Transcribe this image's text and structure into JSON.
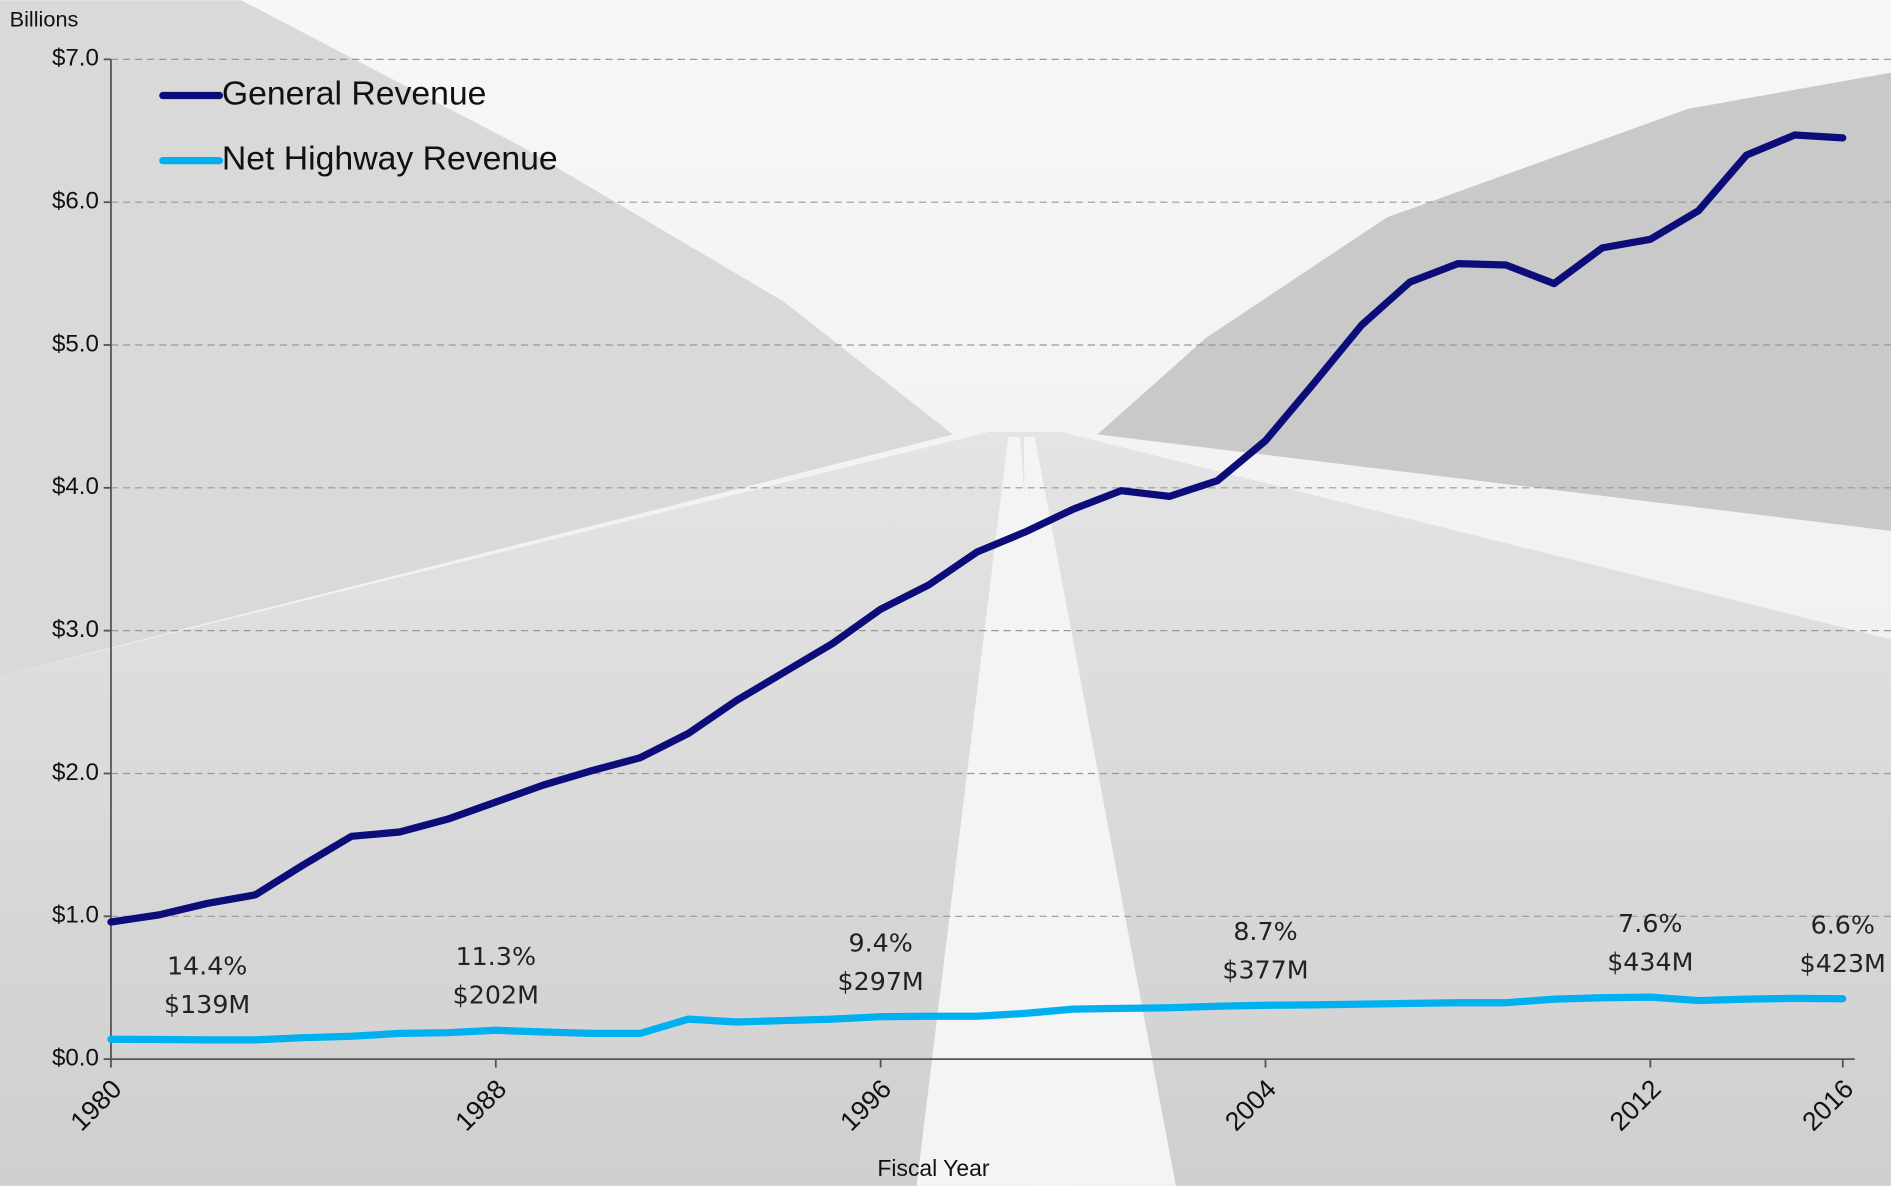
{
  "chart_data": {
    "type": "line",
    "y_axis_label": "Billions",
    "x_axis_label": "Fiscal Year",
    "x": [
      1980,
      1981,
      1982,
      1983,
      1984,
      1985,
      1986,
      1987,
      1988,
      1989,
      1990,
      1991,
      1992,
      1993,
      1994,
      1995,
      1996,
      1997,
      1998,
      1999,
      2000,
      2001,
      2002,
      2003,
      2004,
      2005,
      2006,
      2007,
      2008,
      2009,
      2010,
      2011,
      2012,
      2013,
      2014,
      2015,
      2016
    ],
    "series": [
      {
        "name": "General Revenue",
        "color": "#0d0d7a",
        "values": [
          0.96,
          1.01,
          1.09,
          1.15,
          1.36,
          1.56,
          1.59,
          1.68,
          1.8,
          1.92,
          2.02,
          2.11,
          2.28,
          2.51,
          2.71,
          2.91,
          3.15,
          3.32,
          3.55,
          3.69,
          3.85,
          3.98,
          3.94,
          4.05,
          4.33,
          4.73,
          5.14,
          5.44,
          5.57,
          5.56,
          5.43,
          5.68,
          5.74,
          5.94,
          6.33,
          6.47,
          6.45
        ]
      },
      {
        "name": "Net Highway Revenue",
        "color": "#00b0f0",
        "values": [
          0.139,
          0.137,
          0.135,
          0.135,
          0.15,
          0.16,
          0.18,
          0.185,
          0.202,
          0.19,
          0.18,
          0.18,
          0.28,
          0.26,
          0.27,
          0.28,
          0.297,
          0.3,
          0.3,
          0.32,
          0.35,
          0.355,
          0.36,
          0.37,
          0.377,
          0.38,
          0.385,
          0.39,
          0.395,
          0.395,
          0.42,
          0.43,
          0.434,
          0.41,
          0.42,
          0.425,
          0.423
        ]
      }
    ],
    "xlim": [
      1980,
      2016
    ],
    "xticks": [
      1980,
      1988,
      1996,
      2004,
      2012,
      2016
    ],
    "ylim": [
      0,
      7
    ],
    "yticks": [
      {
        "value": 0,
        "label": "$0.0"
      },
      {
        "value": 1,
        "label": "$1.0"
      },
      {
        "value": 2,
        "label": "$2.0"
      },
      {
        "value": 3,
        "label": "$3.0"
      },
      {
        "value": 4,
        "label": "$4.0"
      },
      {
        "value": 5,
        "label": "$5.0"
      },
      {
        "value": 6,
        "label": "$6.0"
      },
      {
        "value": 7,
        "label": "$7.0"
      }
    ],
    "grid": true,
    "legend": "top-left",
    "annotations": [
      {
        "x": 1982,
        "lines": [
          "14.4%",
          "$139M"
        ]
      },
      {
        "x": 1988,
        "lines": [
          "11.3%",
          "$202M"
        ]
      },
      {
        "x": 1996,
        "lines": [
          "9.4%",
          "$297M"
        ]
      },
      {
        "x": 2004,
        "lines": [
          "8.7%",
          "$377M"
        ]
      },
      {
        "x": 2012,
        "lines": [
          "7.6%",
          "$434M"
        ]
      },
      {
        "x": 2016,
        "lines": [
          "6.6%",
          "$423M"
        ]
      }
    ]
  }
}
